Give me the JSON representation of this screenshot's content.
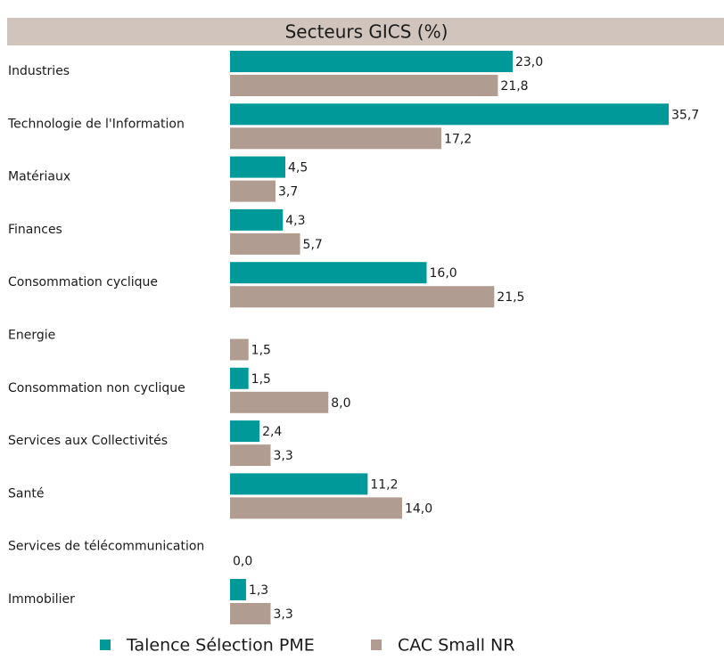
{
  "chart_data": {
    "type": "hbar",
    "title": "Secteurs GICS (%)",
    "categories": [
      "Industries",
      "Technologie de l'Information",
      "Matériaux",
      "Finances",
      "Consommation cyclique",
      "Energie",
      "Consommation non cyclique",
      "Services aux Collectivités",
      "Santé",
      "Services de télécommunication",
      "Immobilier"
    ],
    "series": [
      {
        "name": "Talence Sélection PME",
        "color": "#009999",
        "values": [
          23.0,
          35.7,
          4.5,
          4.3,
          16.0,
          null,
          1.5,
          2.4,
          11.2,
          null,
          1.3
        ],
        "value_labels": [
          "23,0",
          "35,7",
          "4,5",
          "4,3",
          "16,0",
          null,
          "1,5",
          "2,4",
          "11,2",
          null,
          "1,3"
        ]
      },
      {
        "name": "CAC Small NR",
        "color": "#b09c90",
        "values": [
          21.8,
          17.2,
          3.7,
          5.7,
          21.5,
          1.5,
          8.0,
          3.3,
          14.0,
          0.0,
          3.3
        ],
        "value_labels": [
          "21,8",
          "17,2",
          "3,7",
          "5,7",
          "21,5",
          "1,5",
          "8,0",
          "3,3",
          "14,0",
          "0,0",
          "3,3"
        ]
      }
    ]
  }
}
